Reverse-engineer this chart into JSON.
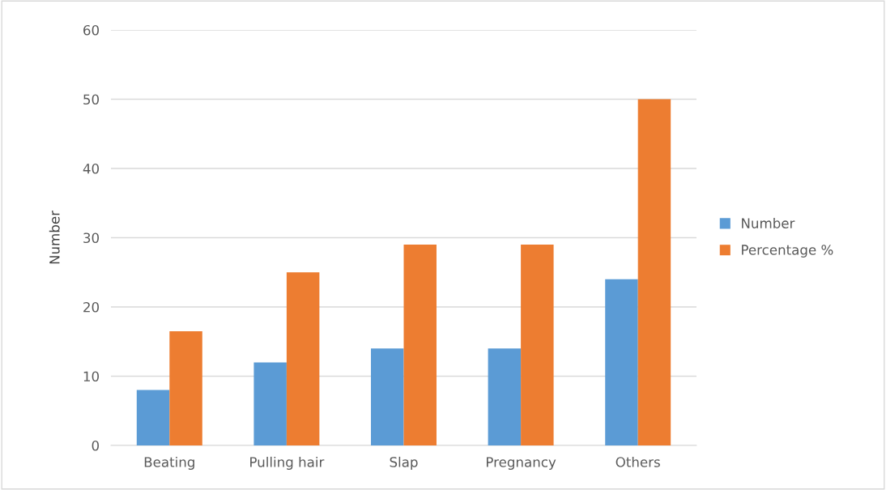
{
  "chart_data": {
    "type": "bar",
    "ylabel": "Number",
    "categories": [
      "Beating",
      "Pulling hair",
      "Slap",
      "Pregnancy",
      "Others"
    ],
    "series": [
      {
        "name": "Number",
        "color": "#5b9bd5",
        "values": [
          8,
          12,
          14,
          14,
          24
        ]
      },
      {
        "name": "Percentage %",
        "color": "#ed7d31",
        "values": [
          16.5,
          25,
          29,
          29,
          50
        ]
      }
    ],
    "ylim": [
      0,
      60
    ],
    "yticks": [
      0,
      10,
      20,
      30,
      40,
      50,
      60
    ],
    "grid": "y",
    "legend": "right"
  }
}
